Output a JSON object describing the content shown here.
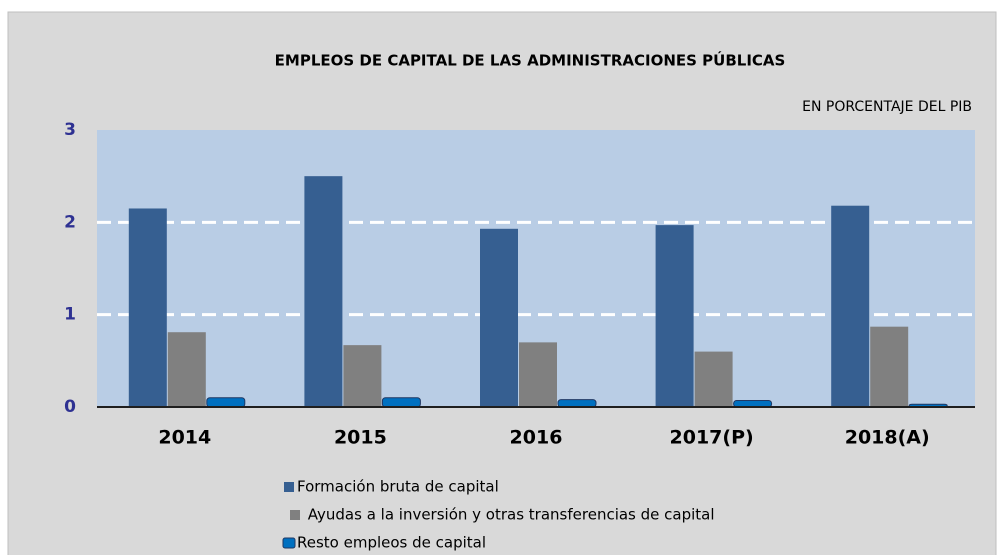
{
  "chart_data": {
    "type": "bar",
    "title": "EMPLEOS DE CAPITAL DE LAS ADMINISTRACIONES PÚBLICAS",
    "subtitle": "EN PORCENTAJE  DEL PIB",
    "categories": [
      "2014",
      "2015",
      "2016",
      "2017(P)",
      "2018(A)"
    ],
    "series": [
      {
        "name": "Formación bruta de capital",
        "color": "#365f91",
        "values": [
          2.15,
          2.5,
          1.93,
          1.97,
          2.18
        ]
      },
      {
        "name": " Ayudas a la inversión y otras transferencias de capital",
        "color": "#808080",
        "values": [
          0.81,
          0.67,
          0.7,
          0.6,
          0.87
        ]
      },
      {
        "name": "Resto empleos de capital",
        "color": "#0070c0",
        "values": [
          0.1,
          0.1,
          0.08,
          0.07,
          0.03
        ]
      }
    ],
    "ylim": [
      0,
      3
    ],
    "yticks": [
      0,
      1,
      2,
      3
    ],
    "grid": true
  }
}
